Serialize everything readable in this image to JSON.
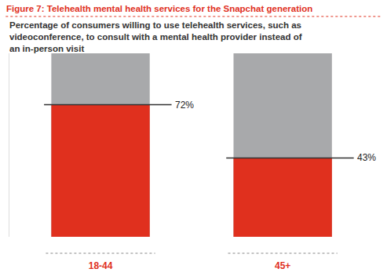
{
  "chart_data": {
    "type": "bar",
    "title": "Figure 7: Telehealth mental health services for the Snapchat generation",
    "subtitle": "Percentage of consumers willing to use telehealth services, such as videoconference, to consult with a mental health provider instead of an in-person visit",
    "categories": [
      "18-44",
      "45+"
    ],
    "values": [
      72,
      43
    ],
    "value_labels": [
      "72%",
      "43%"
    ],
    "data_labels": true,
    "color": "#e0301e",
    "ylim": [
      0,
      100
    ],
    "yticks": [],
    "grid": false,
    "tick_labels": "x"
  }
}
